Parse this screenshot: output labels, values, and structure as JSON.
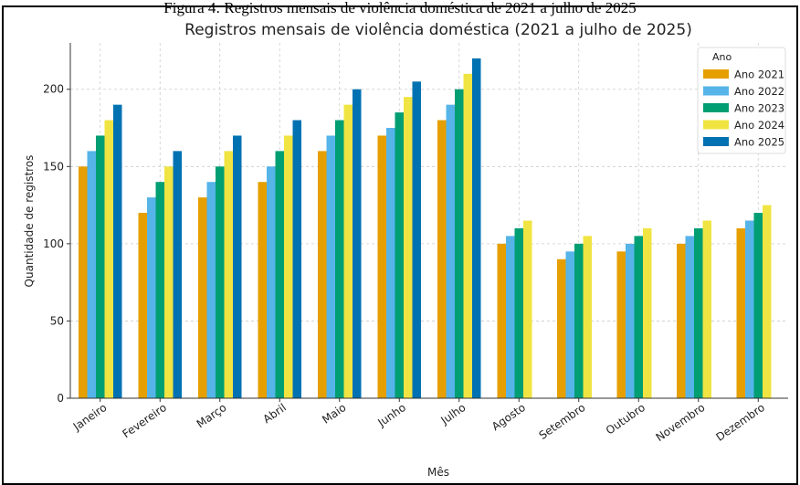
{
  "caption": "Figura 4: Registros mensais de violência doméstica de 2021 a julho de 2025",
  "chart_data": {
    "type": "bar",
    "title": "Registros mensais de violência doméstica (2021 a julho de 2025)",
    "xlabel": "Mês",
    "ylabel": "Quantidade de registros",
    "ylim": [
      0,
      230
    ],
    "yticks": [
      0,
      50,
      100,
      150,
      200
    ],
    "grid": true,
    "legend_title": "Ano",
    "legend_position": "top-right",
    "categories": [
      "Janeiro",
      "Fevereiro",
      "Março",
      "Abril",
      "Maio",
      "Junho",
      "Julho",
      "Agosto",
      "Setembro",
      "Outubro",
      "Novembro",
      "Dezembro"
    ],
    "series": [
      {
        "name": "Ano 2021",
        "color": "#E69F00",
        "values": [
          150,
          120,
          130,
          140,
          160,
          170,
          180,
          100,
          90,
          95,
          100,
          110
        ]
      },
      {
        "name": "Ano 2022",
        "color": "#56B4E9",
        "values": [
          160,
          130,
          140,
          150,
          170,
          175,
          190,
          105,
          95,
          100,
          105,
          115
        ]
      },
      {
        "name": "Ano 2023",
        "color": "#009E73",
        "values": [
          170,
          140,
          150,
          160,
          180,
          185,
          200,
          110,
          100,
          105,
          110,
          120
        ]
      },
      {
        "name": "Ano 2024",
        "color": "#F0E442",
        "values": [
          180,
          150,
          160,
          170,
          190,
          195,
          210,
          115,
          105,
          110,
          115,
          125
        ]
      },
      {
        "name": "Ano 2025",
        "color": "#0072B2",
        "values": [
          190,
          160,
          170,
          180,
          200,
          205,
          220,
          null,
          null,
          null,
          null,
          null
        ]
      }
    ]
  }
}
